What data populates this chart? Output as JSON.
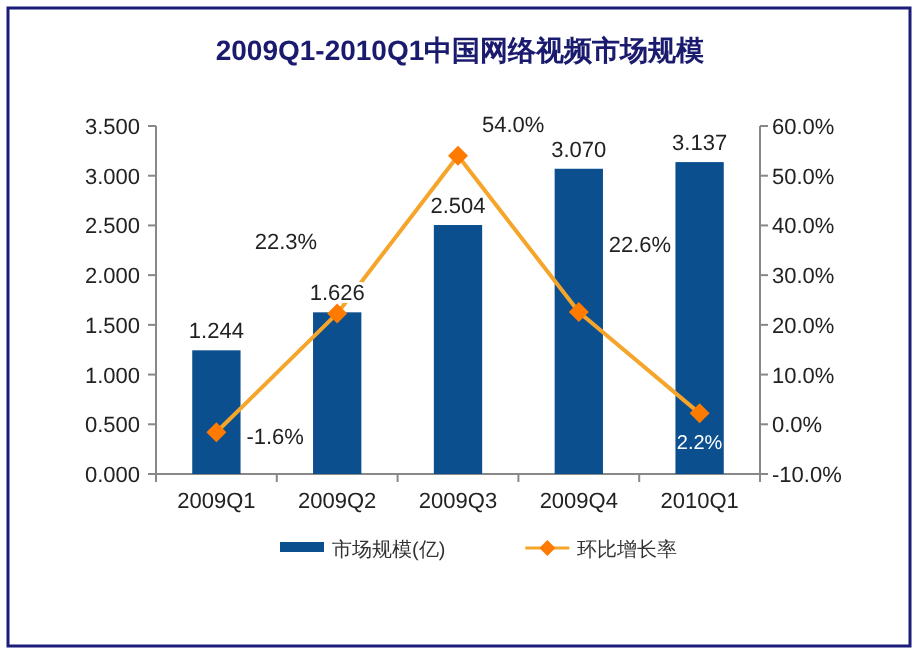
{
  "chart_data": {
    "type": "bar",
    "title": "2009Q1-2010Q1中国网络视频市场规模",
    "categories": [
      "2009Q1",
      "2009Q2",
      "2009Q3",
      "2009Q4",
      "2010Q1"
    ],
    "series": [
      {
        "name": "市场规模(亿)",
        "type": "bar",
        "color": "#0b4f8f",
        "values": [
          1.244,
          1.626,
          2.504,
          3.07,
          3.137
        ],
        "value_labels": [
          "1.244",
          "1.626",
          "2.504",
          "3.070",
          "3.137"
        ]
      },
      {
        "name": "环比增长率",
        "type": "line",
        "axis": "y2",
        "color": "#f5a52a",
        "marker": "diamond",
        "values": [
          -1.6,
          22.3,
          54.0,
          22.6,
          2.2
        ],
        "value_labels": [
          "-1.6%",
          "22.3%",
          "54.0%",
          "22.6%",
          "2.2%"
        ]
      }
    ],
    "ylim": [
      0,
      3.5
    ],
    "yticks": [
      {
        "value": 0,
        "label": "0.000"
      },
      {
        "value": 0.5,
        "label": "0.500"
      },
      {
        "value": 1,
        "label": "1.000"
      },
      {
        "value": 1.5,
        "label": "1.500"
      },
      {
        "value": 2,
        "label": "2.000"
      },
      {
        "value": 2.5,
        "label": "2.500"
      },
      {
        "value": 3,
        "label": "3.000"
      },
      {
        "value": 3.5,
        "label": "3.500"
      }
    ],
    "y2lim": [
      -10,
      60
    ],
    "y2ticks": [
      {
        "value": -10,
        "label": "-10.0%"
      },
      {
        "value": 0,
        "label": "0.0%"
      },
      {
        "value": 10,
        "label": "10.0%"
      },
      {
        "value": 20,
        "label": "20.0%"
      },
      {
        "value": 30,
        "label": "30.0%"
      },
      {
        "value": 40,
        "label": "40.0%"
      },
      {
        "value": 50,
        "label": "50.0%"
      },
      {
        "value": 60,
        "label": "60.0%"
      }
    ],
    "grid": false,
    "legend": "bottom"
  }
}
